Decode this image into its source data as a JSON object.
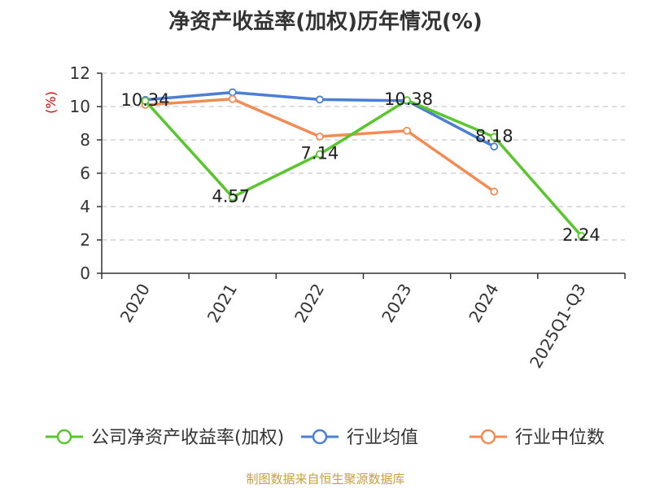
{
  "chart_data": {
    "type": "line",
    "title": "净资产收益率(加权)历年情况(%)",
    "ylabel": "(%)",
    "categories": [
      "2020",
      "2021",
      "2022",
      "2023",
      "2024",
      "2025Q1-Q3"
    ],
    "ylim": [
      0,
      12
    ],
    "yticks": [
      0,
      2,
      4,
      6,
      8,
      10,
      12
    ],
    "grid": true,
    "legend_position": "bottom",
    "series": [
      {
        "name": "公司净资产收益率(加权)",
        "color": "#5ac62e",
        "values": [
          10.34,
          4.57,
          7.14,
          10.38,
          8.18,
          2.24
        ],
        "show_labels": true
      },
      {
        "name": "行业均值",
        "color": "#4a7fd4",
        "values": [
          10.4,
          10.85,
          10.42,
          10.35,
          7.6,
          null
        ],
        "show_labels": false
      },
      {
        "name": "行业中位数",
        "color": "#f28c55",
        "values": [
          10.1,
          10.45,
          8.2,
          8.55,
          4.9,
          null
        ],
        "show_labels": false
      }
    ]
  },
  "source_note": "制图数据来自恒生聚源数据库"
}
